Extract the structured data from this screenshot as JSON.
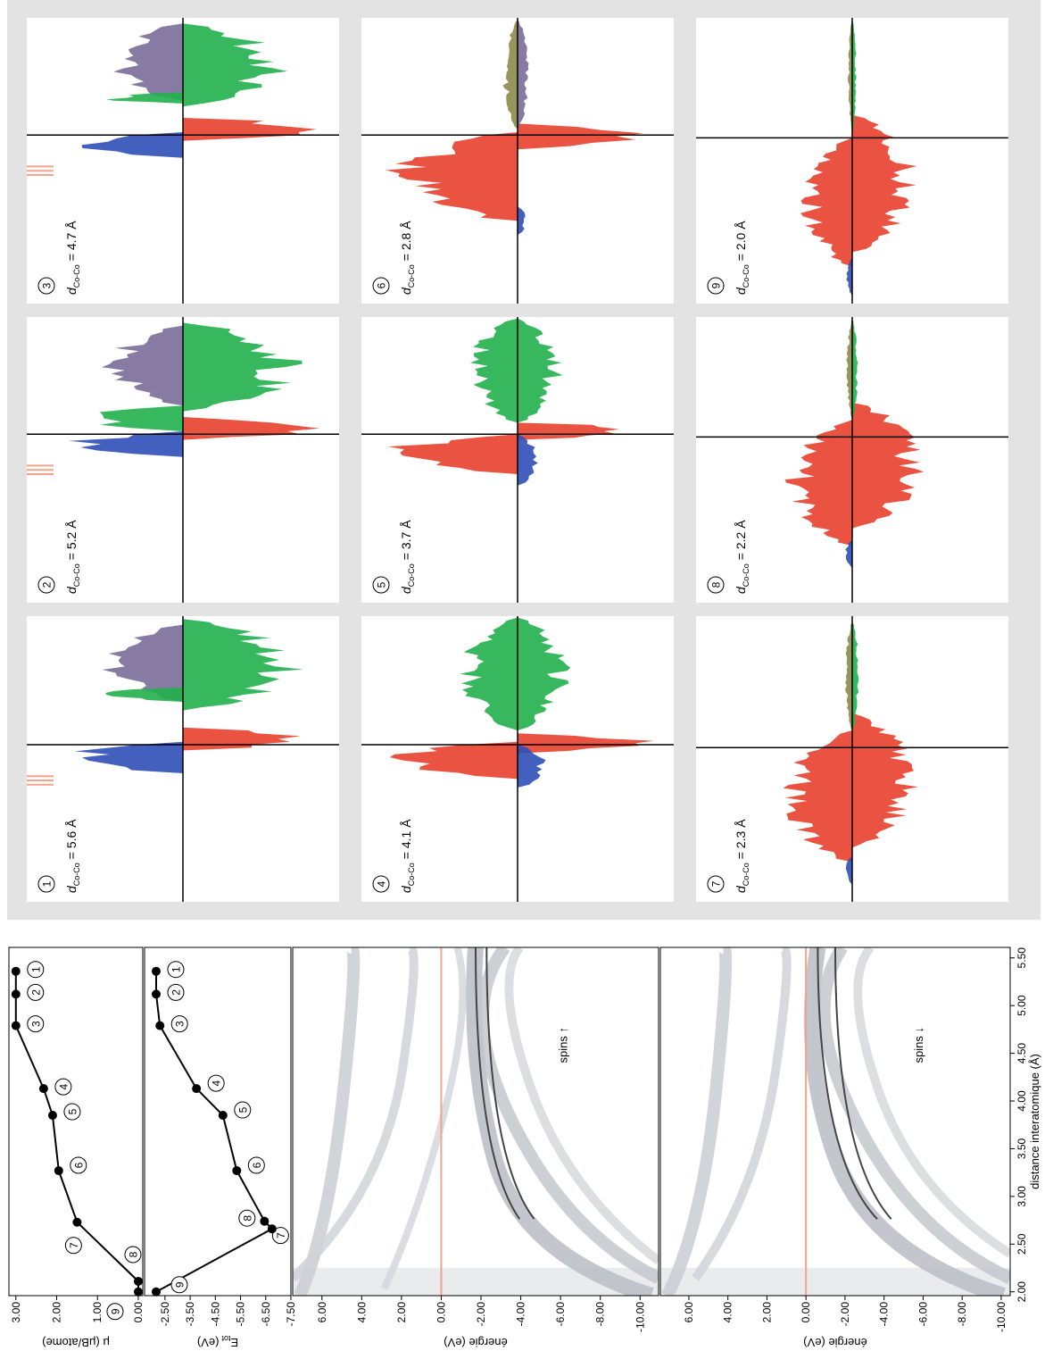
{
  "chart_data": [
    {
      "type": "line",
      "ylabel": "μ (μB/atome)",
      "x": [
        5.36,
        5.12,
        4.79,
        4.13,
        3.85,
        3.27,
        2.73,
        2.11,
        2.0
      ],
      "values": [
        3.0,
        3.0,
        3.0,
        2.32,
        2.1,
        1.95,
        1.5,
        0.0,
        0.0
      ],
      "point_labels": [
        "1",
        "2",
        "3",
        "4",
        "5",
        "6",
        "7",
        "8",
        "9"
      ],
      "color": "#000000",
      "xlim": [
        1.96,
        5.61
      ],
      "ylim": [
        -0.11,
        3.17
      ],
      "yticks": [
        {
          "value": 3,
          "label": "3.00"
        },
        {
          "value": 2,
          "label": "2.00"
        },
        {
          "value": 1,
          "label": "1.00"
        },
        {
          "value": 0,
          "label": "0.00"
        }
      ]
    },
    {
      "type": "line",
      "ylabel": {
        "symbol": "E",
        "subscript": "tot",
        "unit": "(eV)"
      },
      "x": [
        5.36,
        5.12,
        4.79,
        4.13,
        3.85,
        3.27,
        2.74,
        2.66,
        2.0
      ],
      "values": [
        -2.15,
        -2.15,
        -2.3,
        -3.75,
        -4.8,
        -5.35,
        -6.45,
        -6.75,
        -2.15
      ],
      "point_labels": [
        "1",
        "2",
        "3",
        "4",
        "5",
        "6",
        "7",
        "8",
        "9"
      ],
      "color": "#000000",
      "xlim": [
        1.96,
        5.61
      ],
      "ylim": [
        -7.5,
        -1.69
      ],
      "yticks": [
        {
          "value": -2.5,
          "label": "-2.50"
        },
        {
          "value": -3.5,
          "label": "-3.50"
        },
        {
          "value": -4.5,
          "label": "-4.50"
        },
        {
          "value": -5.5,
          "label": "-5.50"
        },
        {
          "value": -6.5,
          "label": "-6.50"
        },
        {
          "value": -7.5,
          "label": "-7.50"
        }
      ]
    },
    {
      "type": "heatmap",
      "ylabel": "énergie (eV)",
      "annotation": "spins ↑",
      "xlim": [
        1.96,
        5.61
      ],
      "ylim": [
        -10.93,
        7.47
      ],
      "yticks": [
        {
          "value": 6,
          "label": "6.00"
        },
        {
          "value": 4,
          "label": "4.00"
        },
        {
          "value": 2,
          "label": "2.00"
        },
        {
          "value": 0,
          "label": "0.00"
        },
        {
          "value": -2,
          "label": "-2.00"
        },
        {
          "value": -4,
          "label": "-4.00"
        },
        {
          "value": -6,
          "label": "-6.00"
        },
        {
          "value": -8,
          "label": "-8.00"
        },
        {
          "value": -10,
          "label": "-10.00"
        }
      ]
    },
    {
      "type": "heatmap",
      "ylabel": "énergie (eV)",
      "annotation": "spins ↓",
      "xlabel": "distance interatomique (Å)",
      "xlim": [
        1.96,
        5.61
      ],
      "ylim": [
        -10.46,
        7.46
      ],
      "xticks": [
        {
          "value": 2,
          "label": "2.00"
        },
        {
          "value": 2.5,
          "label": "2.50"
        },
        {
          "value": 3,
          "label": "3.00"
        },
        {
          "value": 3.5,
          "label": "3.50"
        },
        {
          "value": 4,
          "label": "4.00"
        },
        {
          "value": 4.5,
          "label": "4.50"
        },
        {
          "value": 5,
          "label": "5.00"
        },
        {
          "value": 5.5,
          "label": "5.50"
        }
      ],
      "yticks": [
        {
          "value": 6,
          "label": "6.00"
        },
        {
          "value": 4,
          "label": "4.00"
        },
        {
          "value": 2,
          "label": "2.00"
        },
        {
          "value": 0,
          "label": "0.00"
        },
        {
          "value": -2,
          "label": "-2.00"
        },
        {
          "value": -4,
          "label": "-4.00"
        },
        {
          "value": -6,
          "label": "-6.00"
        },
        {
          "value": -8,
          "label": "-8.00"
        },
        {
          "value": -10,
          "label": "-10.00"
        }
      ]
    }
  ],
  "dos_panels": [
    {
      "number": "1",
      "symbol": "d",
      "subscript": "Co-Co",
      "value": "= 5.6 Å"
    },
    {
      "number": "2",
      "symbol": "d",
      "subscript": "Co-Co",
      "value": "= 5.2 Å"
    },
    {
      "number": "3",
      "symbol": "d",
      "subscript": "Co-Co",
      "value": "= 4.7 Å"
    },
    {
      "number": "4",
      "symbol": "d",
      "subscript": "Co-Co",
      "value": "= 4.1 Å"
    },
    {
      "number": "5",
      "symbol": "d",
      "subscript": "Co-Co",
      "value": "= 3.7 Å"
    },
    {
      "number": "6",
      "symbol": "d",
      "subscript": "Co-Co",
      "value": "= 2.8 Å"
    },
    {
      "number": "7",
      "symbol": "d",
      "subscript": "Co-Co",
      "value": "= 2.3 Å"
    },
    {
      "number": "8",
      "symbol": "d",
      "subscript": "Co-Co",
      "value": "= 2.2 Å"
    },
    {
      "number": "9",
      "symbol": "d",
      "subscript": "Co-Co",
      "value": "= 2.0 Å"
    }
  ]
}
